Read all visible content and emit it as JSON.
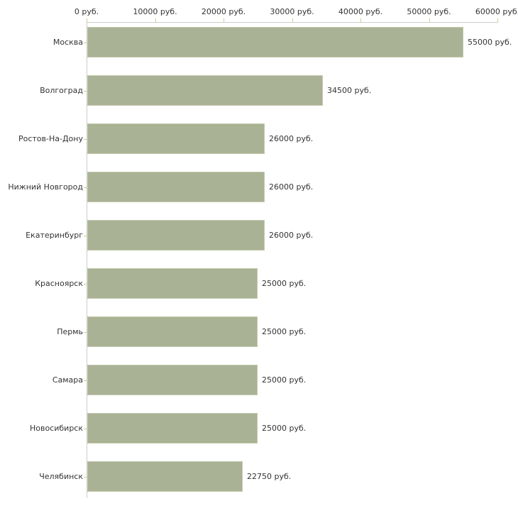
{
  "chart_data": {
    "type": "bar",
    "orientation": "horizontal",
    "title": "",
    "xlabel": "",
    "ylabel": "",
    "unit": "руб.",
    "categories": [
      "Москва",
      "Волгоград",
      "Ростов-На-Дону",
      "Нижний Новгород",
      "Екатеринбург",
      "Красноярск",
      "Пермь",
      "Самара",
      "Новосибирск",
      "Челябинск"
    ],
    "values": [
      55000,
      34500,
      26000,
      26000,
      26000,
      25000,
      25000,
      25000,
      25000,
      22750
    ],
    "value_labels": [
      "55000 руб.",
      "34500 руб.",
      "26000 руб.",
      "26000 руб.",
      "26000 руб.",
      "25000 руб.",
      "25000 руб.",
      "25000 руб.",
      "25000 руб.",
      "22750 руб."
    ],
    "x_ticks": [
      0,
      10000,
      20000,
      30000,
      40000,
      50000,
      60000
    ],
    "x_tick_labels": [
      "0 руб.",
      "10000 руб.",
      "20000 руб.",
      "30000 руб.",
      "40000 руб.",
      "50000 руб.",
      "60000 руб."
    ],
    "xlim": [
      0,
      60000
    ],
    "axis_position": "top",
    "grid": false,
    "legend": "none",
    "colors": {
      "bar_fill": "#aab295",
      "bar_border": "#c2c8ac",
      "axis_line": "#cccccc",
      "tick_mark": "#cccc99",
      "text": "#333333",
      "background": "#ffffff"
    }
  }
}
